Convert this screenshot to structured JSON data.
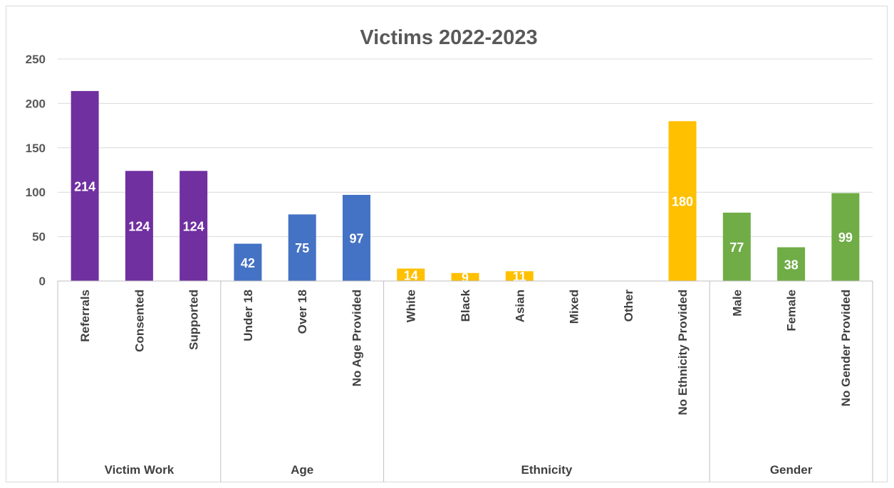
{
  "chart_data": {
    "type": "bar",
    "title": "Victims 2022-2023",
    "xlabel": "",
    "ylabel": "",
    "ylim": [
      0,
      250
    ],
    "yticks": [
      0,
      50,
      100,
      150,
      200,
      250
    ],
    "grid": true,
    "legend": "none",
    "categories": [
      "Referrals",
      "Consented",
      "Supported",
      "Under 18",
      "Over 18",
      "No Age Provided",
      "White",
      "Black",
      "Asian",
      "Mixed",
      "Other",
      "No Ethnicity Provided",
      "Male",
      "Female",
      "No Gender Provided"
    ],
    "values": [
      214,
      124,
      124,
      42,
      75,
      97,
      14,
      9,
      11,
      null,
      null,
      180,
      77,
      38,
      99
    ],
    "data_labels": [
      "214",
      "124",
      "124",
      "42",
      "75",
      "97",
      "14",
      "9",
      "11",
      "",
      "",
      "180",
      "77",
      "38",
      "99"
    ],
    "groups": [
      {
        "name": "Victim Work",
        "count": 3,
        "color": "#7030a0"
      },
      {
        "name": "Age",
        "count": 3,
        "color": "#4472c4"
      },
      {
        "name": "Ethnicity",
        "count": 6,
        "color": "#ffc000"
      },
      {
        "name": "Gender",
        "count": 3,
        "color": "#70ad47"
      }
    ]
  }
}
